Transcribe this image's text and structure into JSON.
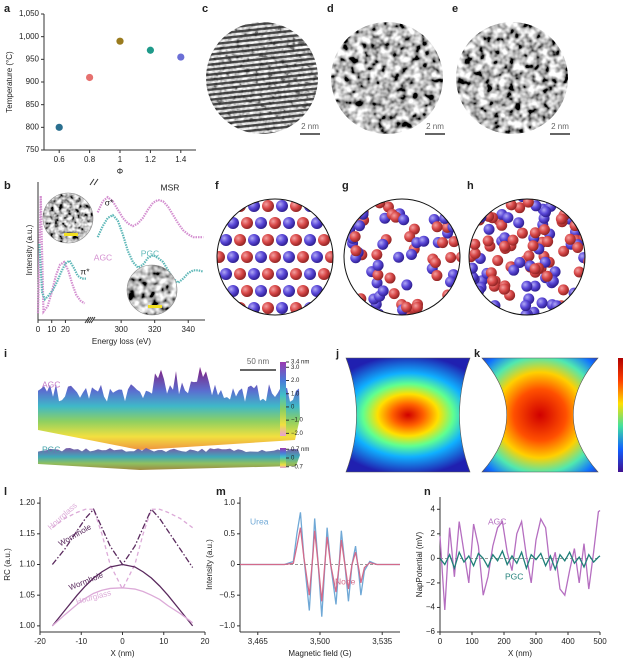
{
  "chart_data": [
    {
      "type": "scatter",
      "label": "a",
      "xlabel": "Φ",
      "ylabel": "Temperature (°C)",
      "x": [
        0.6,
        0.8,
        1.0,
        1.2,
        1.4
      ],
      "values": [
        800,
        910,
        990,
        970,
        955
      ],
      "colors": [
        "#2a6f8f",
        "#e6716f",
        "#9a7b1e",
        "#1f9a8a",
        "#6b6fd6"
      ],
      "xlim": [
        0.5,
        1.5
      ],
      "ylim": [
        750,
        1050
      ],
      "xticks": [
        0.6,
        0.8,
        1.0,
        1.2,
        1.4
      ],
      "yticks": [
        750,
        800,
        850,
        900,
        950,
        {
          "value": 1000,
          "label": "1,000"
        },
        {
          "value": 1050,
          "label": "1,050"
        }
      ]
    },
    {
      "type": "broken-line",
      "label": "b",
      "xlabel": "Energy loss (eV)",
      "ylabel": "Intensity (a.u.)",
      "xlim": [
        0,
        350
      ],
      "xbreak": [
        35,
        285
      ],
      "ylim": [
        0,
        1
      ],
      "xticks": [
        0,
        10,
        20,
        300,
        320,
        340
      ],
      "annotations": [
        "π*",
        "σ*",
        "MSR",
        "AGC",
        "PGC"
      ],
      "series": [
        {
          "name": "AGC",
          "color": "#d48fd0",
          "x": [
            0,
            2,
            4,
            7,
            10,
            13,
            16,
            19,
            22,
            25,
            28,
            31,
            34,
            null,
            286,
            289,
            292,
            295,
            298,
            301,
            304,
            307,
            310,
            313,
            316,
            319,
            322,
            325,
            328,
            331,
            334,
            337,
            340,
            343,
            346,
            349
          ],
          "values": [
            0.05,
            0.9,
            0.06,
            0.1,
            0.2,
            0.32,
            0.4,
            0.42,
            0.36,
            0.26,
            0.18,
            0.14,
            0.12,
            null,
            0.78,
            0.86,
            0.89,
            0.86,
            0.8,
            0.74,
            0.7,
            0.68,
            0.7,
            0.74,
            0.8,
            0.85,
            0.87,
            0.86,
            0.82,
            0.76,
            0.7,
            0.65,
            0.62,
            0.6,
            0.6,
            0.6
          ]
        },
        {
          "name": "PGC",
          "color": "#5fb8b8",
          "x": [
            1,
            3,
            5,
            8,
            11,
            14,
            17,
            20,
            23,
            26,
            29,
            32,
            35,
            null,
            286,
            289,
            292,
            295,
            298,
            301,
            304,
            307,
            310,
            313,
            316,
            319,
            322,
            325,
            328,
            331,
            334,
            337,
            340,
            343,
            346,
            349
          ],
          "values": [
            0.55,
            0.2,
            0.15,
            0.18,
            0.22,
            0.28,
            0.35,
            0.41,
            0.43,
            0.38,
            0.32,
            0.3,
            0.3,
            null,
            0.6,
            0.68,
            0.74,
            0.76,
            0.72,
            0.62,
            0.5,
            0.42,
            0.38,
            0.4,
            0.45,
            0.47,
            0.45,
            0.42,
            0.36,
            0.3,
            0.27,
            0.3,
            0.34,
            0.36,
            0.36,
            0.35
          ]
        }
      ]
    },
    {
      "type": "line",
      "label": "l",
      "xlabel": "X (nm)",
      "ylabel": "RC (a.u.)",
      "x": [
        -17,
        -14,
        -11,
        -9,
        -7,
        -5,
        -3,
        0,
        3,
        5,
        7,
        9,
        11,
        14,
        17
      ],
      "xlim": [
        -20,
        20
      ],
      "ylim": [
        0.99,
        1.21
      ],
      "xticks": [
        -20,
        -10,
        0,
        10,
        20
      ],
      "yticks": [
        {
          "value": 1.0,
          "label": "1.00"
        },
        1.05,
        {
          "value": 1.1,
          "label": "1.10"
        },
        1.15,
        {
          "value": 1.2,
          "label": "1.20"
        }
      ],
      "series": [
        {
          "name": "Hourglass",
          "color": "#dcaad8",
          "style": "dashed",
          "values": [
            1.16,
            1.175,
            1.185,
            1.19,
            1.19,
            1.15,
            1.1,
            1.06,
            1.1,
            1.15,
            1.19,
            1.19,
            1.185,
            1.175,
            1.16
          ]
        },
        {
          "name": "Wormhole",
          "color": "#5a2a5e",
          "style": "dashdot",
          "values": [
            1.1,
            1.125,
            1.155,
            1.175,
            1.19,
            1.16,
            1.13,
            1.1,
            1.13,
            1.16,
            1.19,
            1.175,
            1.155,
            1.125,
            1.095
          ]
        },
        {
          "name": "Wormhole",
          "color": "#5a2a5e",
          "style": "solid",
          "values": [
            1.0,
            1.025,
            1.05,
            1.065,
            1.078,
            1.088,
            1.096,
            1.1,
            1.096,
            1.088,
            1.078,
            1.065,
            1.05,
            1.025,
            1.0
          ]
        },
        {
          "name": "Hourglass",
          "color": "#dcaad8",
          "style": "solid",
          "values": [
            1.0,
            1.018,
            1.035,
            1.045,
            1.053,
            1.058,
            1.061,
            1.062,
            1.06,
            1.056,
            1.05,
            1.043,
            1.033,
            1.02,
            1.005
          ]
        }
      ]
    },
    {
      "type": "line",
      "label": "m",
      "xlabel": "Magnetic field (G)",
      "ylabel": "Intensity (a.u.)",
      "x": [
        3455,
        3470,
        3480,
        3485,
        3487,
        3489,
        3491,
        3494,
        3496,
        3497,
        3499,
        3501,
        3503,
        3504,
        3506,
        3509,
        3511,
        3512,
        3514,
        3516,
        3518,
        3520,
        3522,
        3523,
        3525,
        3528,
        3532,
        3545
      ],
      "xlim": [
        3455,
        3545
      ],
      "ylim": [
        -1.1,
        1.1
      ],
      "xticks": [
        {
          "value": 3465,
          "label": "3,465"
        },
        {
          "value": 3500,
          "label": "3,500"
        },
        {
          "value": 3535,
          "label": "3,535"
        }
      ],
      "yticks": [
        {
          "value": -1.0,
          "label": "−1.0"
        },
        {
          "value": -0.5,
          "label": "−0.5"
        },
        0,
        0.5,
        {
          "value": 1.0,
          "label": "1.0"
        }
      ],
      "series": [
        {
          "name": "Urea",
          "color": "#6fa8d6",
          "style": "solid",
          "values": [
            0,
            0,
            0,
            0.05,
            0.5,
            0.85,
            0.1,
            -0.75,
            0.2,
            0.75,
            0,
            -0.85,
            0.1,
            0.6,
            0,
            -0.65,
            0.1,
            0.55,
            0,
            -0.6,
            0,
            0.3,
            -0.2,
            -0.5,
            -0.1,
            0.05,
            0,
            0
          ]
        },
        {
          "name": "None",
          "color": "#d36a8a",
          "style": "solid",
          "values": [
            0,
            0,
            0,
            0.02,
            0.3,
            0.6,
            0.1,
            -0.5,
            0.15,
            0.55,
            0,
            -0.6,
            0.1,
            0.45,
            0,
            -0.45,
            0.05,
            0.4,
            0,
            -0.4,
            0,
            0.2,
            -0.1,
            -0.3,
            -0.05,
            0.03,
            0,
            0
          ]
        }
      ]
    },
    {
      "type": "line",
      "label": "n",
      "xlabel": "X (nm)",
      "ylabel": "NapPotential (mV)",
      "x": [
        0,
        15,
        30,
        45,
        60,
        75,
        90,
        105,
        120,
        135,
        150,
        165,
        180,
        195,
        210,
        225,
        240,
        255,
        270,
        285,
        300,
        315,
        330,
        345,
        360,
        375,
        390,
        405,
        420,
        435,
        450,
        465,
        480,
        495,
        500
      ],
      "xlim": [
        0,
        500
      ],
      "ylim": [
        -6,
        5
      ],
      "xticks": [
        0,
        100,
        200,
        300,
        400,
        500
      ],
      "yticks": [
        {
          "value": -6,
          "label": "−6"
        },
        {
          "value": -4,
          "label": "−4"
        },
        {
          "value": -2,
          "label": "−2"
        },
        0,
        2,
        4
      ],
      "series": [
        {
          "name": "AGC",
          "color": "#b56ec0",
          "style": "solid",
          "values": [
            1.8,
            -4.2,
            2.5,
            -1.5,
            3.0,
            0.5,
            -2.0,
            2.8,
            1.0,
            -3.0,
            -1.5,
            1.0,
            2.5,
            3.0,
            0.5,
            -1.0,
            2.0,
            3.0,
            0.2,
            -2.0,
            1.5,
            3.2,
            2.5,
            -1.0,
            0.5,
            -2.5,
            -3.0,
            -1.0,
            0.8,
            -2.0,
            1.2,
            -2.5,
            0.5,
            3.8,
            3.9
          ]
        },
        {
          "name": "PGC",
          "color": "#1f7f78",
          "style": "solid",
          "values": [
            0,
            -0.5,
            0.3,
            -0.8,
            0.5,
            -0.3,
            0.2,
            -0.6,
            0.4,
            0,
            -0.7,
            0.3,
            -0.2,
            0.6,
            -0.5,
            0.2,
            -0.4,
            0.5,
            -0.8,
            0.3,
            -0.1,
            0.4,
            -0.6,
            0.2,
            -0.9,
            0.3,
            -0.2,
            0.5,
            -0.4,
            0.1,
            -0.7,
            0.3,
            -0.3,
            0.1,
            0.2
          ]
        }
      ]
    }
  ],
  "panels": [
    {
      "label": "c",
      "scale_bar": "2 nm"
    },
    {
      "label": "d",
      "scale_bar": "2 nm"
    },
    {
      "label": "e",
      "scale_bar": "2 nm"
    },
    {
      "label": "f"
    },
    {
      "label": "g"
    },
    {
      "label": "h"
    },
    {
      "label": "i",
      "scale_bar": "50 nm",
      "annotations": [
        "AGC",
        "PGC"
      ],
      "colorbars": [
        {
          "lim": [
            -2.2,
            3.4
          ],
          "ticks": [
            {
              "value": 3.4,
              "label": "3.4 nm"
            },
            {
              "value": 3,
              "label": "3.0"
            },
            {
              "value": 2,
              "label": "2.0"
            },
            {
              "value": 1,
              "label": "1.0"
            },
            0,
            {
              "value": -1,
              "label": "−1.0"
            },
            {
              "value": -2,
              "label": "−2.0"
            }
          ]
        },
        {
          "lim": [
            -0.8,
            0.8
          ],
          "ticks": [
            {
              "value": 0.7,
              "label": "0.7 nm"
            },
            0,
            {
              "value": -0.7,
              "label": "−0.7"
            }
          ]
        }
      ]
    },
    {
      "label": "j"
    },
    {
      "label": "k"
    }
  ]
}
